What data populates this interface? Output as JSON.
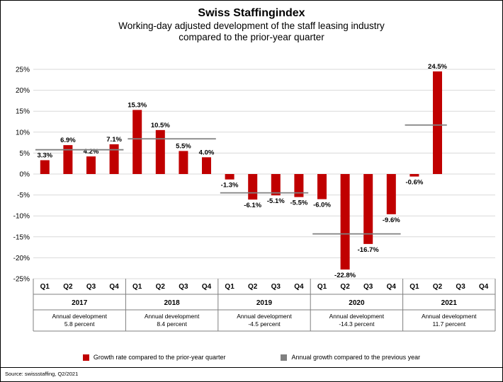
{
  "window": {
    "background": "#ffffff",
    "border_color": "#000000"
  },
  "header": {
    "title": "Swiss Staffingindex",
    "subtitle_line1": "Working-day adjusted development of the staff leasing industry",
    "subtitle_line2": "compared to the prior-year quarter"
  },
  "chart_data": {
    "type": "bar",
    "title": "Swiss Staffingindex",
    "subtitle": "Working-day adjusted development of the staff leasing industry compared to the prior-year quarter",
    "xlabel": "",
    "ylabel": "",
    "ylim": [
      -25,
      25
    ],
    "ytick_step": 5,
    "grid": true,
    "legend_position": "bottom",
    "bar_color": "#c00000",
    "annual_line_color": "#808080",
    "grid_color": "#d9d9d9",
    "table_line_color": "#7f7f7f",
    "yticks": [
      {
        "v": 25,
        "label": "25%"
      },
      {
        "v": 20,
        "label": "20%"
      },
      {
        "v": 15,
        "label": "15%"
      },
      {
        "v": 10,
        "label": "10%"
      },
      {
        "v": 5,
        "label": "5%"
      },
      {
        "v": 0,
        "label": "0%"
      },
      {
        "v": -5,
        "label": "-5%"
      },
      {
        "v": -10,
        "label": "-10%"
      },
      {
        "v": -15,
        "label": "-15%"
      },
      {
        "v": -20,
        "label": "-20%"
      },
      {
        "v": -25,
        "label": "-25%"
      }
    ],
    "years": [
      {
        "year": "2017",
        "quarters": [
          "Q1",
          "Q2",
          "Q3",
          "Q4"
        ],
        "values": [
          3.3,
          6.9,
          4.2,
          7.1
        ],
        "value_labels": [
          "3.3%",
          "6.9%",
          "4.2%",
          "7.1%"
        ],
        "annual_value": 5.8,
        "annual_span": 4,
        "annual_label_line1": "Annual development",
        "annual_label_line2": "5.8 percent"
      },
      {
        "year": "2018",
        "quarters": [
          "Q1",
          "Q2",
          "Q3",
          "Q4"
        ],
        "values": [
          15.3,
          10.5,
          5.5,
          4.0
        ],
        "value_labels": [
          "15.3%",
          "10.5%",
          "5.5%",
          "4.0%"
        ],
        "annual_value": 8.4,
        "annual_span": 4,
        "annual_label_line1": "Annual development",
        "annual_label_line2": "8.4 percent"
      },
      {
        "year": "2019",
        "quarters": [
          "Q1",
          "Q2",
          "Q3",
          "Q4"
        ],
        "values": [
          -1.3,
          -6.1,
          -5.1,
          -5.5
        ],
        "value_labels": [
          "-1.3%",
          "-6.1%",
          "-5.1%",
          "-5.5%"
        ],
        "annual_value": -4.5,
        "annual_span": 4,
        "annual_label_line1": "Annual development",
        "annual_label_line2": "-4.5 percent"
      },
      {
        "year": "2020",
        "quarters": [
          "Q1",
          "Q2",
          "Q3",
          "Q4"
        ],
        "values": [
          -6.0,
          -22.8,
          -16.7,
          -9.6
        ],
        "value_labels": [
          "-6.0%",
          "-22.8%",
          "-16.7%",
          "-9.6%"
        ],
        "annual_value": -14.3,
        "annual_span": 4,
        "annual_label_line1": "Annual development",
        "annual_label_line2": "-14.3 percent"
      },
      {
        "year": "2021",
        "quarters": [
          "Q1",
          "Q2",
          "Q3",
          "Q4"
        ],
        "values": [
          -0.6,
          24.5,
          null,
          null
        ],
        "value_labels": [
          "-0.6%",
          "24.5%",
          "",
          ""
        ],
        "annual_value": 11.7,
        "annual_span": 2,
        "annual_label_line1": "Annual development",
        "annual_label_line2": "11.7 percent"
      }
    ]
  },
  "legend": {
    "items": [
      {
        "swatch": "#c00000",
        "label": "Growth rate compared to the prior-year quarter"
      },
      {
        "swatch": "#808080",
        "label": "Annual growth compared to the previous year"
      }
    ]
  },
  "source": "Source: swissstaffing, Q2/2021"
}
